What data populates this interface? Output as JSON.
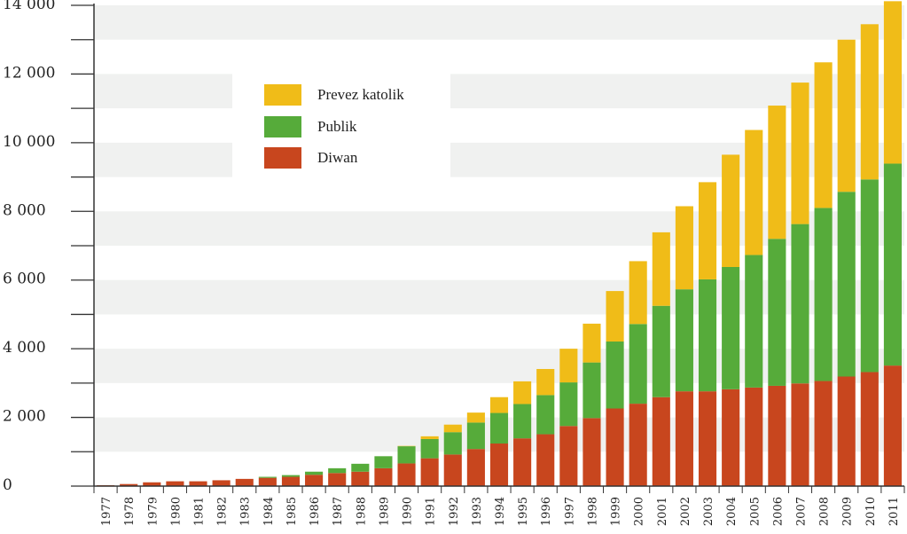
{
  "chart_data": {
    "type": "bar",
    "stacked": true,
    "title": "",
    "xlabel": "",
    "ylabel": "",
    "ylim": [
      0,
      14000
    ],
    "y_ticks": [
      0,
      2000,
      4000,
      6000,
      8000,
      10000,
      12000,
      14000
    ],
    "y_tick_labels": [
      "0",
      "2 000",
      "4 000",
      "6 000",
      "8 000",
      "10 000",
      "12 000",
      "14 000"
    ],
    "grid": "alternating horizontal bands",
    "legend_position": "top-left",
    "categories": [
      "1977",
      "1978",
      "1979",
      "1980",
      "1981",
      "1982",
      "1983",
      "1984",
      "1985",
      "1986",
      "1987",
      "1988",
      "1989",
      "1990",
      "1991",
      "1992",
      "1993",
      "1994",
      "1995",
      "1996",
      "1997",
      "1998",
      "1999",
      "2000",
      "2001",
      "2002",
      "2003",
      "2004",
      "2005",
      "2006",
      "2007",
      "2008",
      "2009",
      "2010",
      "2011"
    ],
    "series": [
      {
        "name": "Diwan",
        "color": "#c8461e",
        "values": [
          25,
          60,
          110,
          140,
          140,
          170,
          210,
          240,
          270,
          330,
          380,
          420,
          520,
          660,
          810,
          920,
          1080,
          1240,
          1390,
          1510,
          1750,
          1980,
          2260,
          2400,
          2590,
          2760,
          2760,
          2820,
          2870,
          2920,
          2990,
          3060,
          3190,
          3320,
          3510
        ]
      },
      {
        "name": "Publik",
        "color": "#56ab3a",
        "values": [
          0,
          0,
          0,
          0,
          0,
          0,
          0,
          30,
          50,
          90,
          140,
          230,
          350,
          500,
          560,
          650,
          770,
          890,
          1000,
          1140,
          1270,
          1620,
          1950,
          2320,
          2660,
          2970,
          3260,
          3560,
          3860,
          4280,
          4640,
          5040,
          5380,
          5610,
          5880
        ]
      },
      {
        "name": "Prevez katolik",
        "color": "#f0bc18",
        "values": [
          0,
          0,
          0,
          0,
          0,
          0,
          0,
          0,
          0,
          0,
          0,
          0,
          0,
          10,
          80,
          220,
          290,
          460,
          660,
          760,
          980,
          1130,
          1470,
          1830,
          2140,
          2420,
          2830,
          3270,
          3640,
          3880,
          4120,
          4240,
          4430,
          4520,
          4730
        ]
      }
    ]
  }
}
